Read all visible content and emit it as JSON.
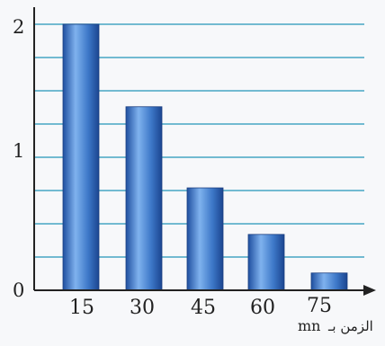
{
  "chart_data": {
    "type": "bar",
    "categories": [
      "15",
      "30",
      "45",
      "60",
      "75"
    ],
    "values": [
      2.0,
      1.38,
      0.77,
      0.42,
      0.13
    ],
    "yticks": [
      "0",
      "1",
      "2"
    ],
    "xlabel_unit": "mn",
    "xlabel_text": "الزمن بـ",
    "ylim": [
      0,
      2.1
    ],
    "grid": true,
    "bar_color": "#3d78c8",
    "grid_color": "#46a5c3"
  }
}
